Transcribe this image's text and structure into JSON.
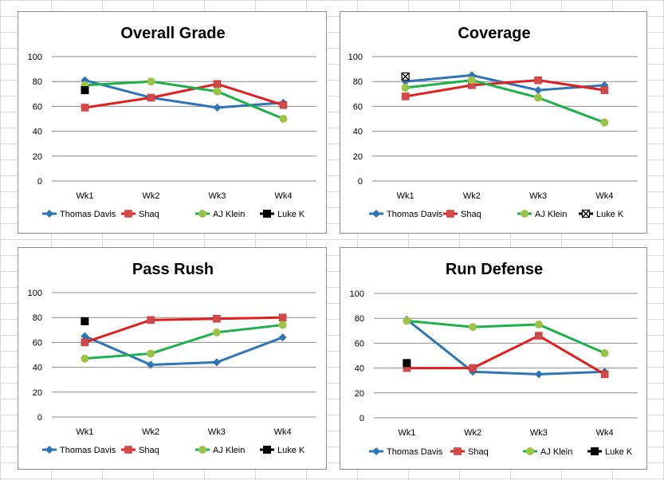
{
  "series_styles": [
    {
      "name": "Thomas Davis",
      "color": "#2e75b6",
      "marker": "diamond"
    },
    {
      "name": "Shaq",
      "color": "#e02020",
      "marker": "square"
    },
    {
      "name": "AJ Klein",
      "color": "#1fb04c",
      "marker_color": "#9bc346",
      "marker": "circle"
    },
    {
      "name": "Luke K",
      "color": "#000000",
      "marker": "square-black"
    }
  ],
  "chart_data": [
    {
      "type": "line",
      "title": "Overall Grade",
      "categories": [
        "Wk1",
        "Wk2",
        "Wk3",
        "Wk4"
      ],
      "ylim": [
        0,
        100
      ],
      "yticks": [
        "0",
        "20",
        "40",
        "60",
        "80",
        "100"
      ],
      "legend_position": "bottom",
      "series": [
        {
          "name": "Thomas Davis",
          "values": [
            81,
            67,
            59,
            63
          ]
        },
        {
          "name": "Shaq",
          "values": [
            59,
            67,
            78,
            61
          ]
        },
        {
          "name": "AJ Klein",
          "values": [
            77,
            80,
            72,
            50
          ]
        },
        {
          "name": "Luke K",
          "values": [
            73,
            null,
            null,
            null
          ]
        }
      ]
    },
    {
      "type": "line",
      "title": "Coverage",
      "categories": [
        "Wk1",
        "Wk2",
        "Wk3",
        "Wk4"
      ],
      "ylim": [
        0,
        100
      ],
      "yticks": [
        "0",
        "20",
        "40",
        "60",
        "80",
        "100"
      ],
      "legend_position": "bottom",
      "luke_marker": "square-x",
      "series": [
        {
          "name": "Thomas Davis",
          "values": [
            80,
            85,
            73,
            77
          ]
        },
        {
          "name": "Shaq",
          "values": [
            68,
            77,
            81,
            73
          ]
        },
        {
          "name": "AJ Klein",
          "values": [
            75,
            81,
            67,
            47
          ]
        },
        {
          "name": "Luke K",
          "values": [
            84,
            null,
            null,
            null
          ]
        }
      ]
    },
    {
      "type": "line",
      "title": "Pass Rush",
      "categories": [
        "Wk1",
        "Wk2",
        "Wk3",
        "Wk4"
      ],
      "ylim": [
        0,
        100
      ],
      "yticks": [
        "0",
        "20",
        "40",
        "60",
        "80",
        "100"
      ],
      "legend_position": "bottom",
      "series": [
        {
          "name": "Thomas Davis",
          "values": [
            65,
            42,
            44,
            64
          ]
        },
        {
          "name": "Shaq",
          "values": [
            60,
            78,
            79,
            80
          ]
        },
        {
          "name": "AJ Klein",
          "values": [
            47,
            51,
            68,
            74
          ]
        },
        {
          "name": "Luke K",
          "values": [
            77,
            null,
            null,
            null
          ]
        }
      ]
    },
    {
      "type": "line",
      "title": "Run Defense",
      "categories": [
        "Wk1",
        "Wk2",
        "Wk3",
        "Wk4"
      ],
      "ylim": [
        0,
        100
      ],
      "yticks": [
        "0",
        "20",
        "40",
        "60",
        "80",
        "100"
      ],
      "legend_position": "bottom",
      "series": [
        {
          "name": "Thomas Davis",
          "values": [
            79,
            37,
            35,
            37
          ]
        },
        {
          "name": "Shaq",
          "values": [
            40,
            40,
            66,
            35
          ]
        },
        {
          "name": "AJ Klein",
          "values": [
            78,
            73,
            75,
            52
          ]
        },
        {
          "name": "Luke K",
          "values": [
            44,
            null,
            null,
            null
          ]
        }
      ]
    }
  ]
}
